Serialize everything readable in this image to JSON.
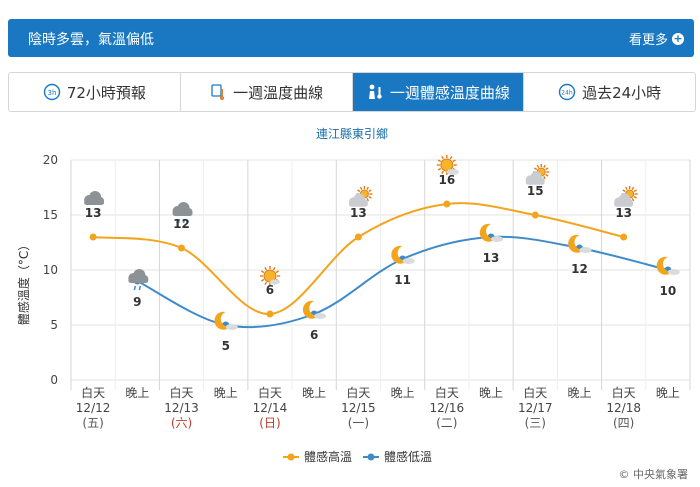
{
  "banner": {
    "text": "陰時多雲，氣溫偏低",
    "more": "看更多"
  },
  "tabs": [
    {
      "label": "72小時預報",
      "icon": "72h-clock-icon"
    },
    {
      "label": "一週溫度曲線",
      "icon": "thermometer-icon"
    },
    {
      "label": "一週體感溫度曲線",
      "icon": "person-temperature-icon",
      "active": true
    },
    {
      "label": "過去24小時",
      "icon": "24h-clock-icon"
    }
  ],
  "chart_data": {
    "type": "line",
    "title": "連江縣東引鄉",
    "ylabel": "體感溫度（°C）",
    "ylim": [
      0,
      20
    ],
    "yticks": [
      0,
      5,
      10,
      15,
      20
    ],
    "grid": true,
    "legend_position": "bottom",
    "credit": "© 中央氣象署",
    "colors": {
      "high": "#f2a51c",
      "low": "#3f8bc9"
    },
    "days": [
      {
        "top": "白天",
        "date": "12/12",
        "dow": "(五)",
        "dow_color": "#555555"
      },
      {
        "top": "白天",
        "date": "12/13",
        "dow": "(六)",
        "dow_color": "#c0392b"
      },
      {
        "top": "白天",
        "date": "12/14",
        "dow": "(日)",
        "dow_color": "#c0392b"
      },
      {
        "top": "白天",
        "date": "12/15",
        "dow": "(一)",
        "dow_color": "#555555"
      },
      {
        "top": "白天",
        "date": "12/16",
        "dow": "(二)",
        "dow_color": "#555555"
      },
      {
        "top": "白天",
        "date": "12/17",
        "dow": "(三)",
        "dow_color": "#555555"
      },
      {
        "top": "白天",
        "date": "12/18",
        "dow": "(四)",
        "dow_color": "#555555"
      }
    ],
    "night_label": "晚上",
    "series": [
      {
        "name": "體感高溫",
        "values": [
          13,
          12,
          6,
          13,
          16,
          15,
          13
        ],
        "icons": [
          "cloudy-icon",
          "cloudy-rain-icon",
          "sunny-icon",
          "partly-cloudy-icon",
          "sunny-cloud-icon",
          "partly-cloudy-icon",
          "partly-cloudy-icon"
        ]
      },
      {
        "name": "體感低溫",
        "values": [
          9,
          5,
          6,
          11,
          13,
          12,
          10
        ],
        "icons": [
          "cloudy-rain-icon",
          "moon-cloud-icon",
          "moon-cloud-icon",
          "moon-cloud-icon",
          "moon-cloud-icon",
          "moon-cloud-icon",
          "moon-cloud-icon"
        ]
      }
    ]
  }
}
